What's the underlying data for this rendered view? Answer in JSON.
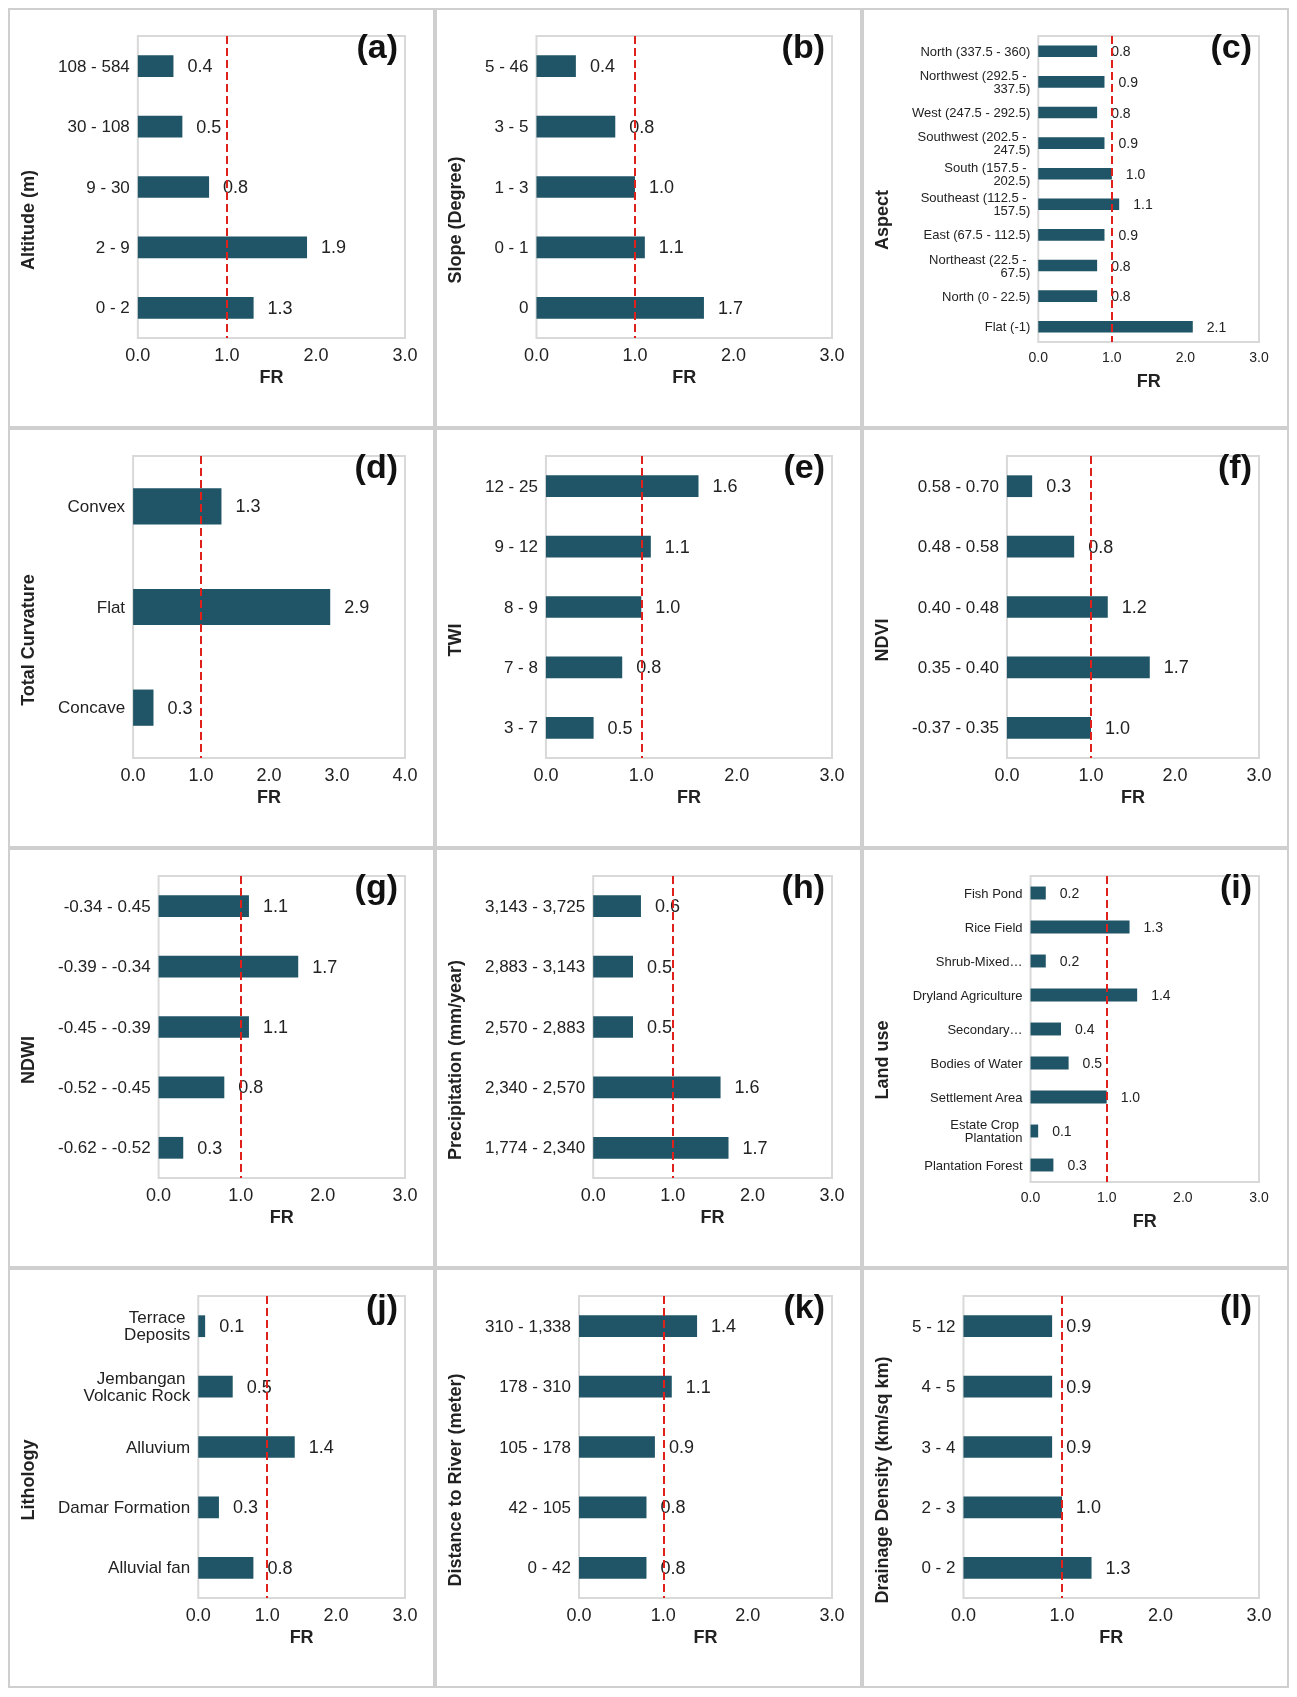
{
  "chart_data": [
    {
      "type": "bar",
      "orientation": "horizontal",
      "title": "(a)",
      "ylabel": "Altitude (m)",
      "xlabel": "FR",
      "categories": [
        "108 - 584",
        "30 - 108",
        "9 - 30",
        "2 - 9",
        "0 - 2"
      ],
      "values": [
        0.4,
        0.5,
        0.8,
        1.9,
        1.3
      ],
      "value_labels": [
        "0.4",
        "0.5",
        "0.8",
        "1.9",
        "1.3"
      ],
      "color": "#1f5566",
      "xlim": [
        0,
        3
      ],
      "xticks": [
        {
          "value": 0,
          "label": "0.0"
        },
        {
          "value": 1,
          "label": "1.0"
        },
        {
          "value": 2,
          "label": "2.0"
        },
        {
          "value": 3,
          "label": "3.0"
        }
      ],
      "ref_lines": [
        {
          "axis": "x",
          "value": 1,
          "color": "#e0201b",
          "line_style": "dashed"
        }
      ]
    },
    {
      "type": "bar",
      "orientation": "horizontal",
      "title": "(b)",
      "ylabel": "Slope (Degree)",
      "xlabel": "FR",
      "categories": [
        "5 - 46",
        "3 - 5",
        "1 - 3",
        "0 - 1",
        "0"
      ],
      "values": [
        0.4,
        0.8,
        1.0,
        1.1,
        1.7
      ],
      "value_labels": [
        "0.4",
        "0.8",
        "1.0",
        "1.1",
        "1.7"
      ],
      "color": "#1f5566",
      "xlim": [
        0,
        3
      ],
      "xticks": [
        {
          "value": 0,
          "label": "0.0"
        },
        {
          "value": 1,
          "label": "1.0"
        },
        {
          "value": 2,
          "label": "2.0"
        },
        {
          "value": 3,
          "label": "3.0"
        }
      ],
      "ref_lines": [
        {
          "axis": "x",
          "value": 1,
          "color": "#e0201b",
          "line_style": "dashed"
        }
      ]
    },
    {
      "type": "bar",
      "orientation": "horizontal",
      "title": "(c)",
      "ylabel": "Aspect",
      "xlabel": "FR",
      "categories": [
        "North (337.5 - 360)",
        "Northwest (292.5 - 337.5)",
        "West (247.5 - 292.5)",
        "Southwest (202.5 - 247.5)",
        "South (157.5 - 202.5)",
        "Southeast (112.5 - 157.5)",
        "East (67.5 - 112.5)",
        "Northeast (22.5 - 67.5)",
        "North (0 - 22.5)",
        "Flat (-1)"
      ],
      "values": [
        0.8,
        0.9,
        0.8,
        0.9,
        1.0,
        1.1,
        0.9,
        0.8,
        0.8,
        2.1
      ],
      "value_labels": [
        "0.8",
        "0.9",
        "0.8",
        "0.9",
        "1.0",
        "1.1",
        "0.9",
        "0.8",
        "0.8",
        "2.1"
      ],
      "color": "#1f5566",
      "xlim": [
        0,
        3
      ],
      "xticks": [
        {
          "value": 0,
          "label": "0.0"
        },
        {
          "value": 1,
          "label": "1.0"
        },
        {
          "value": 2,
          "label": "2.0"
        },
        {
          "value": 3,
          "label": "3.0"
        }
      ],
      "ref_lines": [
        {
          "axis": "x",
          "value": 1,
          "color": "#e0201b",
          "line_style": "dashed"
        }
      ]
    },
    {
      "type": "bar",
      "orientation": "horizontal",
      "title": "(d)",
      "ylabel": "Total Curvature",
      "xlabel": "FR",
      "categories": [
        "Convex",
        "Flat",
        "Concave"
      ],
      "values": [
        1.3,
        2.9,
        0.3
      ],
      "value_labels": [
        "1.3",
        "2.9",
        "0.3"
      ],
      "color": "#1f5566",
      "xlim": [
        0,
        4
      ],
      "xticks": [
        {
          "value": 0,
          "label": "0.0"
        },
        {
          "value": 1,
          "label": "1.0"
        },
        {
          "value": 2,
          "label": "2.0"
        },
        {
          "value": 3,
          "label": "3.0"
        },
        {
          "value": 4,
          "label": "4.0"
        }
      ],
      "ref_lines": [
        {
          "axis": "x",
          "value": 1,
          "color": "#e0201b",
          "line_style": "dashed"
        }
      ]
    },
    {
      "type": "bar",
      "orientation": "horizontal",
      "title": "(e)",
      "ylabel": "TWI",
      "xlabel": "FR",
      "categories": [
        "12 - 25",
        "9 - 12",
        "8 - 9",
        "7 - 8",
        "3 - 7"
      ],
      "values": [
        1.6,
        1.1,
        1.0,
        0.8,
        0.5
      ],
      "value_labels": [
        "1.6",
        "1.1",
        "1.0",
        "0.8",
        "0.5"
      ],
      "color": "#1f5566",
      "xlim": [
        0,
        3
      ],
      "xticks": [
        {
          "value": 0,
          "label": "0.0"
        },
        {
          "value": 1,
          "label": "1.0"
        },
        {
          "value": 2,
          "label": "2.0"
        },
        {
          "value": 3,
          "label": "3.0"
        }
      ],
      "ref_lines": [
        {
          "axis": "x",
          "value": 1,
          "color": "#e0201b",
          "line_style": "dashed"
        }
      ]
    },
    {
      "type": "bar",
      "orientation": "horizontal",
      "title": "(f)",
      "ylabel": "NDVI",
      "xlabel": "FR",
      "categories": [
        "0.58 - 0.70",
        "0.48 - 0.58",
        "0.40 - 0.48",
        "0.35 - 0.40",
        "-0.37 - 0.35"
      ],
      "values": [
        0.3,
        0.8,
        1.2,
        1.7,
        1.0
      ],
      "value_labels": [
        "0.3",
        "0.8",
        "1.2",
        "1.7",
        "1.0"
      ],
      "color": "#1f5566",
      "xlim": [
        0,
        3
      ],
      "xticks": [
        {
          "value": 0,
          "label": "0.0"
        },
        {
          "value": 1,
          "label": "1.0"
        },
        {
          "value": 2,
          "label": "2.0"
        },
        {
          "value": 3,
          "label": "3.0"
        }
      ],
      "ref_lines": [
        {
          "axis": "x",
          "value": 1,
          "color": "#e0201b",
          "line_style": "dashed"
        }
      ]
    },
    {
      "type": "bar",
      "orientation": "horizontal",
      "title": "(g)",
      "ylabel": "NDWI",
      "xlabel": "FR",
      "categories": [
        "-0.34 - 0.45",
        "-0.39 - -0.34",
        "-0.45 - -0.39",
        "-0.52 - -0.45",
        "-0.62 - -0.52"
      ],
      "values": [
        1.1,
        1.7,
        1.1,
        0.8,
        0.3
      ],
      "value_labels": [
        "1.1",
        "1.7",
        "1.1",
        "0.8",
        "0.3"
      ],
      "color": "#1f5566",
      "xlim": [
        0,
        3
      ],
      "xticks": [
        {
          "value": 0,
          "label": "0.0"
        },
        {
          "value": 1,
          "label": "1.0"
        },
        {
          "value": 2,
          "label": "2.0"
        },
        {
          "value": 3,
          "label": "3.0"
        }
      ],
      "ref_lines": [
        {
          "axis": "x",
          "value": 1,
          "color": "#e0201b",
          "line_style": "dashed"
        }
      ]
    },
    {
      "type": "bar",
      "orientation": "horizontal",
      "title": "(h)",
      "ylabel": "Precipitation (mm/year)",
      "xlabel": "FR",
      "categories": [
        "3,143 - 3,725",
        "2,883 - 3,143",
        "2,570 - 2,883",
        "2,340 - 2,570",
        "1,774 - 2,340"
      ],
      "values": [
        0.6,
        0.5,
        0.5,
        1.6,
        1.7
      ],
      "value_labels": [
        "0.6",
        "0.5",
        "0.5",
        "1.6",
        "1.7"
      ],
      "color": "#1f5566",
      "xlim": [
        0,
        3
      ],
      "xticks": [
        {
          "value": 0,
          "label": "0.0"
        },
        {
          "value": 1,
          "label": "1.0"
        },
        {
          "value": 2,
          "label": "2.0"
        },
        {
          "value": 3,
          "label": "3.0"
        }
      ],
      "ref_lines": [
        {
          "axis": "x",
          "value": 1,
          "color": "#e0201b",
          "line_style": "dashed"
        }
      ]
    },
    {
      "type": "bar",
      "orientation": "horizontal",
      "title": "(i)",
      "ylabel": "Land use",
      "xlabel": "FR",
      "categories": [
        "Fish Pond",
        "Rice Field",
        "Shrub-Mixed…",
        "Dryland Agriculture",
        "Secondary…",
        "Bodies of Water",
        "Settlement Area",
        "Estate Crop Plantation",
        "Plantation Forest"
      ],
      "values": [
        0.2,
        1.3,
        0.2,
        1.4,
        0.4,
        0.5,
        1.0,
        0.1,
        0.3
      ],
      "value_labels": [
        "0.2",
        "1.3",
        "0.2",
        "1.4",
        "0.4",
        "0.5",
        "1.0",
        "0.1",
        "0.3"
      ],
      "color": "#1f5566",
      "xlim": [
        0,
        3
      ],
      "xticks": [
        {
          "value": 0,
          "label": "0.0"
        },
        {
          "value": 1,
          "label": "1.0"
        },
        {
          "value": 2,
          "label": "2.0"
        },
        {
          "value": 3,
          "label": "3.0"
        }
      ],
      "ref_lines": [
        {
          "axis": "x",
          "value": 1,
          "color": "#e0201b",
          "line_style": "dashed"
        }
      ]
    },
    {
      "type": "bar",
      "orientation": "horizontal",
      "title": "(j)",
      "ylabel": "Lithology",
      "xlabel": "FR",
      "categories": [
        "Terrace Deposits",
        "Jembangan Volcanic Rock",
        "Alluvium",
        "Damar Formation",
        "Alluvial fan"
      ],
      "values": [
        0.1,
        0.5,
        1.4,
        0.3,
        0.8
      ],
      "value_labels": [
        "0.1",
        "0.5",
        "1.4",
        "0.3",
        "0.8"
      ],
      "color": "#1f5566",
      "xlim": [
        0,
        3
      ],
      "xticks": [
        {
          "value": 0,
          "label": "0.0"
        },
        {
          "value": 1,
          "label": "1.0"
        },
        {
          "value": 2,
          "label": "2.0"
        },
        {
          "value": 3,
          "label": "3.0"
        }
      ],
      "ref_lines": [
        {
          "axis": "x",
          "value": 1,
          "color": "#e0201b",
          "line_style": "dashed"
        }
      ]
    },
    {
      "type": "bar",
      "orientation": "horizontal",
      "title": "(k)",
      "ylabel": "Distance to River (meter)",
      "xlabel": "FR",
      "categories": [
        "310 - 1,338",
        "178 - 310",
        "105 - 178",
        "42 - 105",
        "0 - 42"
      ],
      "values": [
        1.4,
        1.1,
        0.9,
        0.8,
        0.8
      ],
      "value_labels": [
        "1.4",
        "1.1",
        "0.9",
        "0.8",
        "0.8"
      ],
      "color": "#1f5566",
      "xlim": [
        0,
        3
      ],
      "xticks": [
        {
          "value": 0,
          "label": "0.0"
        },
        {
          "value": 1,
          "label": "1.0"
        },
        {
          "value": 2,
          "label": "2.0"
        },
        {
          "value": 3,
          "label": "3.0"
        }
      ],
      "ref_lines": [
        {
          "axis": "x",
          "value": 1,
          "color": "#e0201b",
          "line_style": "dashed"
        }
      ]
    },
    {
      "type": "bar",
      "orientation": "horizontal",
      "title": "(l)",
      "ylabel": "Drainage Density (km/sq km)",
      "xlabel": "FR",
      "categories": [
        "5 - 12",
        "4 - 5",
        "3 - 4",
        "2 - 3",
        "0 - 2"
      ],
      "values": [
        0.9,
        0.9,
        0.9,
        1.0,
        1.3
      ],
      "value_labels": [
        "0.9",
        "0.9",
        "0.9",
        "1.0",
        "1.3"
      ],
      "color": "#1f5566",
      "xlim": [
        0,
        3
      ],
      "xticks": [
        {
          "value": 0,
          "label": "0.0"
        },
        {
          "value": 1,
          "label": "1.0"
        },
        {
          "value": 2,
          "label": "2.0"
        },
        {
          "value": 3,
          "label": "3.0"
        }
      ],
      "ref_lines": [
        {
          "axis": "x",
          "value": 1,
          "color": "#e0201b",
          "line_style": "dashed"
        }
      ]
    }
  ]
}
